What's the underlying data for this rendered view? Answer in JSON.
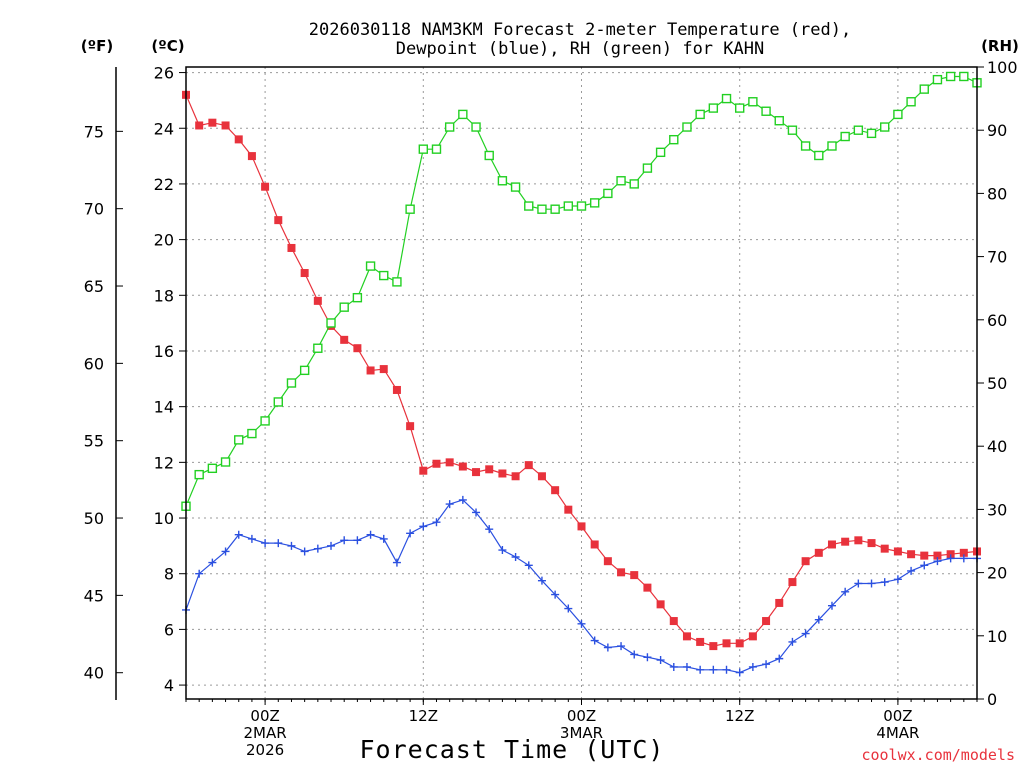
{
  "chart_data": {
    "type": "line",
    "title_line1": "2026030118 NAM3KM Forecast 2-meter Temperature (red),",
    "title_line2": "Dewpoint (blue), RH (green) for KAHN",
    "xlabel": "Forecast Time (UTC)",
    "credit": "coolwx.com/models",
    "unit_f": "(ºF)",
    "unit_c": "(ºC)",
    "unit_rh": "(RH)",
    "x_hours_from_2026030118": [
      0,
      1,
      2,
      3,
      4,
      5,
      6,
      7,
      8,
      9,
      10,
      11,
      12,
      13,
      14,
      15,
      16,
      17,
      18,
      19,
      20,
      21,
      22,
      23,
      24,
      25,
      26,
      27,
      28,
      29,
      30,
      31,
      32,
      33,
      34,
      35,
      36,
      37,
      38,
      39,
      40,
      41,
      42,
      43,
      44,
      45,
      46,
      47,
      48,
      49,
      50,
      51,
      52,
      53,
      54,
      55,
      56,
      57,
      58,
      59,
      60
    ],
    "xlim": [
      0,
      60
    ],
    "x_ticks": [
      {
        "hour": 6,
        "lines": [
          "00Z",
          "2MAR",
          "2026"
        ]
      },
      {
        "hour": 18,
        "lines": [
          "12Z"
        ]
      },
      {
        "hour": 30,
        "lines": [
          "00Z",
          "3MAR"
        ]
      },
      {
        "hour": 42,
        "lines": [
          "12Z"
        ]
      },
      {
        "hour": 54,
        "lines": [
          "00Z",
          "4MAR"
        ]
      }
    ],
    "left_axis_celsius": {
      "ylim": [
        3.5,
        26.2
      ],
      "ticks": [
        4,
        6,
        8,
        10,
        12,
        14,
        16,
        18,
        20,
        22,
        24,
        26
      ]
    },
    "outer_axis_fahrenheit": {
      "ticks": [
        40,
        45,
        50,
        55,
        60,
        65,
        70,
        75
      ]
    },
    "right_axis_rh": {
      "ylim": [
        0,
        100
      ],
      "ticks": [
        0,
        10,
        20,
        30,
        40,
        50,
        60,
        70,
        80,
        90,
        100
      ]
    },
    "series": [
      {
        "name": "Temperature",
        "axis": "celsius",
        "color": "#e8323c",
        "marker": "filled-square",
        "values": [
          25.2,
          24.1,
          24.2,
          24.1,
          23.6,
          23.0,
          21.9,
          20.7,
          19.7,
          18.8,
          17.8,
          16.9,
          16.4,
          16.1,
          15.3,
          15.35,
          14.6,
          13.3,
          11.7,
          11.95,
          12.0,
          11.85,
          11.65,
          11.75,
          11.6,
          11.5,
          11.9,
          11.5,
          11.0,
          10.3,
          9.7,
          9.05,
          8.45,
          8.05,
          7.95,
          7.5,
          6.9,
          6.3,
          5.75,
          5.55,
          5.4,
          5.5,
          5.5,
          5.75,
          6.3,
          6.95,
          7.7,
          8.45,
          8.75,
          9.05,
          9.15,
          9.2,
          9.1,
          8.9,
          8.8,
          8.7,
          8.65,
          8.65,
          8.7,
          8.75,
          8.8
        ]
      },
      {
        "name": "Dewpoint",
        "axis": "celsius",
        "color": "#2b50e0",
        "marker": "plus",
        "values": [
          6.7,
          8.0,
          8.4,
          8.8,
          9.4,
          9.25,
          9.1,
          9.1,
          9.0,
          8.8,
          8.9,
          9.0,
          9.2,
          9.2,
          9.4,
          9.25,
          8.4,
          9.45,
          9.7,
          9.85,
          10.5,
          10.65,
          10.2,
          9.6,
          8.85,
          8.6,
          8.3,
          7.75,
          7.25,
          6.75,
          6.2,
          5.6,
          5.35,
          5.4,
          5.1,
          5.0,
          4.9,
          4.65,
          4.65,
          4.55,
          4.55,
          4.55,
          4.45,
          4.65,
          4.75,
          4.95,
          5.55,
          5.85,
          6.35,
          6.85,
          7.35,
          7.65,
          7.65,
          7.7,
          7.8,
          8.1,
          8.3,
          8.45,
          8.55,
          8.55,
          8.55
        ]
      },
      {
        "name": "RH",
        "axis": "rh",
        "color": "#22d022",
        "marker": "open-square",
        "values": [
          30.5,
          35.5,
          36.5,
          37.5,
          41.0,
          42.0,
          44.0,
          47.0,
          50.0,
          52.0,
          55.5,
          59.5,
          62.0,
          63.5,
          68.5,
          67.0,
          66.0,
          77.5,
          87.0,
          87.0,
          90.5,
          92.5,
          90.5,
          86.0,
          82.0,
          81.0,
          78.0,
          77.5,
          77.5,
          78.0,
          78.0,
          78.5,
          80.0,
          82.0,
          81.5,
          84.0,
          86.5,
          88.5,
          90.5,
          92.5,
          93.5,
          95.0,
          93.5,
          94.5,
          93.0,
          91.5,
          90.0,
          87.5,
          86.0,
          87.5,
          89.0,
          90.0,
          89.5,
          90.5,
          92.5,
          94.5,
          96.5,
          98.0,
          98.5,
          98.5,
          97.5
        ]
      }
    ]
  }
}
